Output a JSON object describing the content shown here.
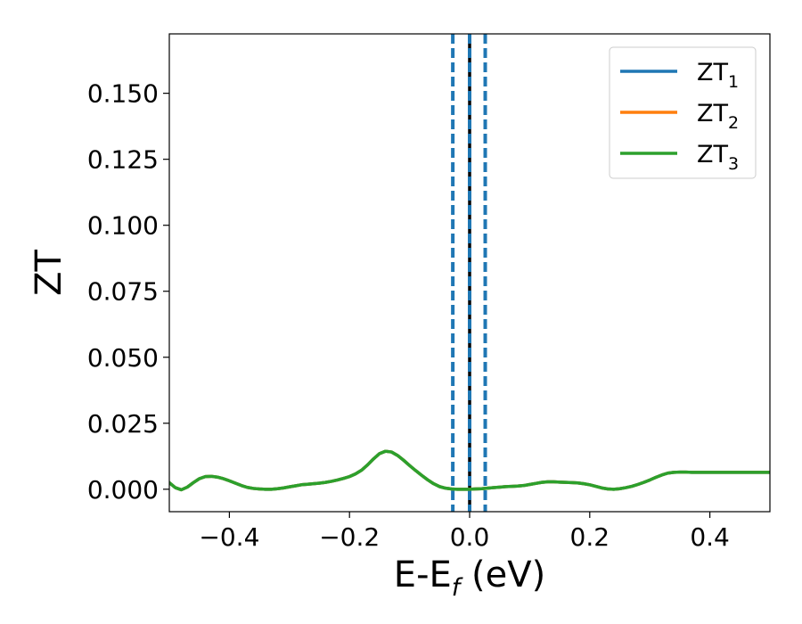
{
  "chart_data": {
    "type": "line",
    "xlabel": "E-E",
    "xlabel_sub": "f",
    "xlabel_suffix": " (eV)",
    "ylabel": "ZT",
    "xlim": [
      -0.5,
      0.5
    ],
    "ylim": [
      -0.0085,
      0.1725
    ],
    "xticks": [
      -0.4,
      -0.2,
      0.0,
      0.2,
      0.4
    ],
    "xtick_labels": [
      "−0.4",
      "−0.2",
      "0.0",
      "0.2",
      "0.4"
    ],
    "yticks": [
      0.0,
      0.025,
      0.05,
      0.075,
      0.1,
      0.125,
      0.15
    ],
    "ytick_labels": [
      "0.000",
      "0.025",
      "0.050",
      "0.075",
      "0.100",
      "0.125",
      "0.150"
    ],
    "grid": false,
    "legend_position": "top-right",
    "vlines": [
      {
        "x": -0.028,
        "color": "#1f77b4",
        "style": "dashed"
      },
      {
        "x": 0.0,
        "color": "#000000",
        "style": "solid"
      },
      {
        "x": 0.0,
        "color": "#1f77b4",
        "style": "dashed"
      },
      {
        "x": 0.026,
        "color": "#1f77b4",
        "style": "dashed"
      }
    ],
    "x": [
      -0.5,
      -0.49,
      -0.48,
      -0.47,
      -0.46,
      -0.45,
      -0.44,
      -0.43,
      -0.42,
      -0.41,
      -0.4,
      -0.39,
      -0.38,
      -0.37,
      -0.36,
      -0.35,
      -0.34,
      -0.33,
      -0.32,
      -0.31,
      -0.3,
      -0.29,
      -0.28,
      -0.27,
      -0.26,
      -0.25,
      -0.24,
      -0.23,
      -0.22,
      -0.21,
      -0.2,
      -0.19,
      -0.18,
      -0.17,
      -0.16,
      -0.15,
      -0.14,
      -0.13,
      -0.12,
      -0.11,
      -0.1,
      -0.09,
      -0.08,
      -0.07,
      -0.06,
      -0.05,
      -0.04,
      -0.03,
      -0.02,
      -0.01,
      0.0,
      0.01,
      0.02,
      0.03,
      0.04,
      0.05,
      0.06,
      0.07,
      0.08,
      0.09,
      0.1,
      0.11,
      0.12,
      0.13,
      0.14,
      0.15,
      0.16,
      0.17,
      0.18,
      0.19,
      0.2,
      0.21,
      0.22,
      0.23,
      0.24,
      0.25,
      0.26,
      0.27,
      0.28,
      0.29,
      0.3,
      0.31,
      0.32,
      0.33,
      0.34,
      0.35,
      0.36,
      0.37,
      0.38,
      0.39,
      0.4,
      0.41,
      0.42,
      0.43,
      0.44,
      0.45,
      0.46,
      0.47,
      0.48,
      0.49,
      0.5
    ],
    "series": [
      {
        "name": "ZT",
        "name_sub": "1",
        "color": "#1f77b4",
        "values": [
          0.0025,
          0.0006,
          -0.0002,
          0.0008,
          0.0025,
          0.004,
          0.0048,
          0.0049,
          0.0046,
          0.004,
          0.0032,
          0.0023,
          0.0014,
          0.0007,
          0.0003,
          0.0001,
          0.0,
          0.0,
          0.0002,
          0.0005,
          0.0009,
          0.0013,
          0.0017,
          0.0019,
          0.0021,
          0.0023,
          0.0026,
          0.003,
          0.0035,
          0.0041,
          0.0048,
          0.0058,
          0.0072,
          0.0092,
          0.0115,
          0.0135,
          0.0144,
          0.0141,
          0.0128,
          0.011,
          0.009,
          0.0071,
          0.0053,
          0.0036,
          0.0021,
          0.001,
          0.0004,
          0.0001,
          0.0,
          0.0,
          0.0,
          0.0001,
          0.0002,
          0.0004,
          0.0006,
          0.0008,
          0.001,
          0.0011,
          0.0012,
          0.0014,
          0.0018,
          0.0022,
          0.0026,
          0.0028,
          0.0028,
          0.0027,
          0.0026,
          0.0025,
          0.0024,
          0.0021,
          0.0017,
          0.0011,
          0.0005,
          0.0001,
          0.0,
          0.0002,
          0.0006,
          0.0011,
          0.0018,
          0.0026,
          0.0035,
          0.0045,
          0.0054,
          0.0061,
          0.0064,
          0.0065,
          0.0065,
          0.0064,
          0.0064,
          0.0064,
          0.0064,
          0.0064,
          0.0064,
          0.0064,
          0.0064,
          0.0064,
          0.0064,
          0.0064,
          0.0064,
          0.0064,
          0.0064
        ]
      },
      {
        "name": "ZT",
        "name_sub": "2",
        "color": "#ff7f0e",
        "values": [
          0.0025,
          0.0006,
          -0.0002,
          0.0008,
          0.0025,
          0.004,
          0.0048,
          0.0049,
          0.0046,
          0.004,
          0.0032,
          0.0023,
          0.0014,
          0.0007,
          0.0003,
          0.0001,
          0.0,
          0.0,
          0.0002,
          0.0005,
          0.0009,
          0.0013,
          0.0017,
          0.0019,
          0.0021,
          0.0023,
          0.0026,
          0.003,
          0.0035,
          0.0041,
          0.0048,
          0.0058,
          0.0072,
          0.0092,
          0.0115,
          0.0135,
          0.0144,
          0.0141,
          0.0128,
          0.011,
          0.009,
          0.0071,
          0.0053,
          0.0036,
          0.0021,
          0.001,
          0.0004,
          0.0001,
          0.0,
          0.0,
          0.0,
          0.0001,
          0.0002,
          0.0004,
          0.0006,
          0.0008,
          0.001,
          0.0011,
          0.0012,
          0.0014,
          0.0018,
          0.0022,
          0.0026,
          0.0028,
          0.0028,
          0.0027,
          0.0026,
          0.0025,
          0.0024,
          0.0021,
          0.0017,
          0.0011,
          0.0005,
          0.0001,
          0.0,
          0.0002,
          0.0006,
          0.0011,
          0.0018,
          0.0026,
          0.0035,
          0.0045,
          0.0054,
          0.0061,
          0.0064,
          0.0065,
          0.0065,
          0.0064,
          0.0064,
          0.0064,
          0.0064,
          0.0064,
          0.0064,
          0.0064,
          0.0064,
          0.0064,
          0.0064,
          0.0064,
          0.0064,
          0.0064,
          0.0064
        ]
      },
      {
        "name": "ZT",
        "name_sub": "3",
        "color": "#2ca02c",
        "values": [
          0.0025,
          0.0006,
          -0.0002,
          0.0008,
          0.0025,
          0.004,
          0.0048,
          0.0049,
          0.0046,
          0.004,
          0.0032,
          0.0023,
          0.0014,
          0.0007,
          0.0003,
          0.0001,
          0.0,
          0.0,
          0.0002,
          0.0005,
          0.0009,
          0.0013,
          0.0017,
          0.0019,
          0.0021,
          0.0023,
          0.0026,
          0.003,
          0.0035,
          0.0041,
          0.0048,
          0.0058,
          0.0072,
          0.0092,
          0.0115,
          0.0135,
          0.0144,
          0.0141,
          0.0128,
          0.011,
          0.009,
          0.0071,
          0.0053,
          0.0036,
          0.0021,
          0.001,
          0.0004,
          0.0001,
          0.0,
          0.0,
          0.0,
          0.0001,
          0.0002,
          0.0004,
          0.0006,
          0.0008,
          0.001,
          0.0011,
          0.0012,
          0.0014,
          0.0018,
          0.0022,
          0.0026,
          0.0028,
          0.0028,
          0.0027,
          0.0026,
          0.0025,
          0.0024,
          0.0021,
          0.0017,
          0.0011,
          0.0005,
          0.0001,
          0.0,
          0.0002,
          0.0006,
          0.0011,
          0.0018,
          0.0026,
          0.0035,
          0.0045,
          0.0054,
          0.0061,
          0.0064,
          0.0065,
          0.0065,
          0.0064,
          0.0064,
          0.0064,
          0.0064,
          0.0064,
          0.0064,
          0.0064,
          0.0064,
          0.0064,
          0.0064,
          0.0064,
          0.0064,
          0.0064,
          0.0064
        ]
      }
    ]
  }
}
